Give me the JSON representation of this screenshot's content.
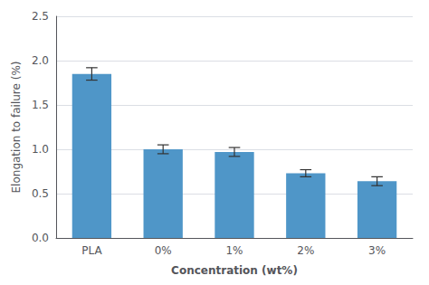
{
  "chart_data": {
    "type": "bar",
    "xlabel": "Concentration (wt%)",
    "ylabel": "Elongation to failure (%)",
    "categories": [
      "PLA",
      "0%",
      "1%",
      "2%",
      "3%"
    ],
    "values": [
      1.85,
      1.0,
      0.97,
      0.73,
      0.64
    ],
    "errors": [
      0.07,
      0.05,
      0.05,
      0.04,
      0.05
    ],
    "color": "#4f96c8",
    "ylim": [
      0,
      2.5
    ],
    "yticks": [
      {
        "value": 0,
        "label": "0.0"
      },
      0.5,
      {
        "value": 1.0,
        "label": "1.0"
      },
      1.5,
      {
        "value": 2.0,
        "label": "2.0"
      },
      2.5
    ],
    "grid": true
  }
}
